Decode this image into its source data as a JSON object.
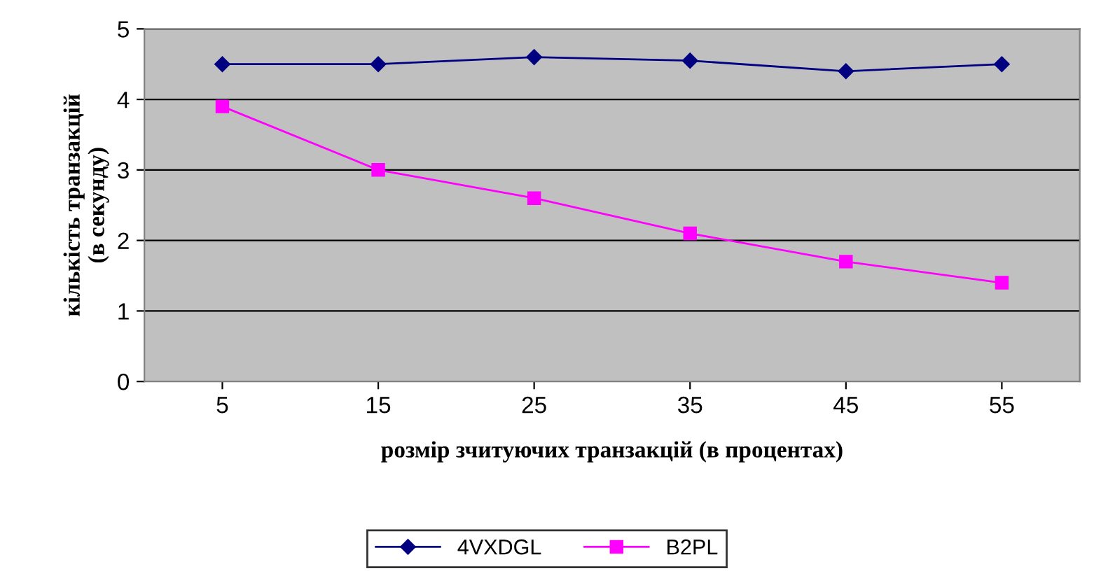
{
  "chart_data": {
    "type": "line",
    "xlabel": "розмір зчитуючих транзакцій (в процентах)",
    "ylabel": "кількість транзакцій\n(в секунду)",
    "categories": [
      "5",
      "15",
      "25",
      "35",
      "45",
      "55"
    ],
    "series": [
      {
        "name": "4VXDGL",
        "color": "#000080",
        "marker": "diamond",
        "values": [
          4.5,
          4.5,
          4.6,
          4.55,
          4.4,
          4.5
        ]
      },
      {
        "name": "B2PL",
        "color": "#ff00ff",
        "marker": "square",
        "values": [
          3.9,
          3.0,
          2.6,
          2.1,
          1.7,
          1.4
        ]
      }
    ],
    "ylim": [
      0,
      5
    ],
    "yticks": [
      0,
      1,
      2,
      3,
      4,
      5
    ],
    "grid": "y",
    "legend": "bottom",
    "line_style": "solid"
  }
}
